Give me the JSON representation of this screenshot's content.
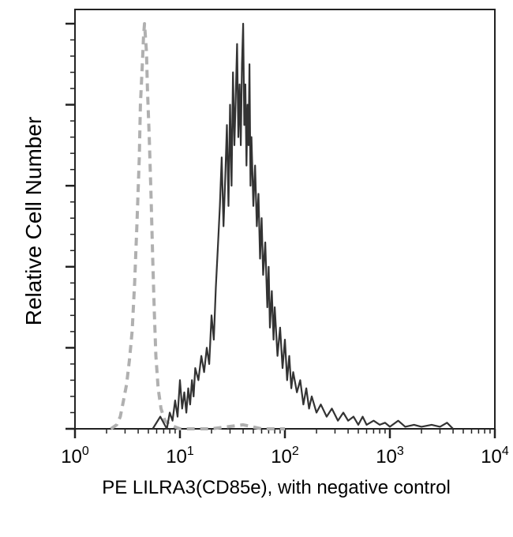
{
  "chart_data": {
    "type": "line",
    "title": "",
    "xlabel": "PE LILRA3(CD85e), with negative control",
    "ylabel": "Relative Cell Number",
    "x_scale": "log",
    "xlim": [
      1,
      10000
    ],
    "ylim": [
      0,
      1.0
    ],
    "x_ticks": [
      {
        "base": "10",
        "exp": "0"
      },
      {
        "base": "10",
        "exp": "1"
      },
      {
        "base": "10",
        "exp": "2"
      },
      {
        "base": "10",
        "exp": "3"
      },
      {
        "base": "10",
        "exp": "4"
      }
    ],
    "grid": false,
    "legend": "none",
    "series": [
      {
        "style": "dashed",
        "color": "#b0b0b0",
        "x": [
          2.2,
          2.5,
          2.7,
          2.9,
          3.1,
          3.3,
          3.5,
          3.7,
          3.9,
          4.1,
          4.2,
          4.4,
          4.5,
          4.6,
          4.8,
          4.9,
          5.1,
          5.3,
          5.5,
          5.7,
          5.9,
          6.2,
          6.6,
          7.2,
          8,
          10,
          20,
          40,
          60,
          100
        ],
        "y": [
          0.0,
          0.01,
          0.03,
          0.07,
          0.11,
          0.17,
          0.24,
          0.36,
          0.51,
          0.67,
          0.8,
          0.91,
          0.97,
          1.0,
          0.93,
          0.84,
          0.72,
          0.58,
          0.42,
          0.29,
          0.18,
          0.1,
          0.05,
          0.02,
          0.01,
          0.0,
          0.0,
          0.01,
          0.0,
          0.0
        ]
      },
      {
        "style": "solid",
        "color": "#333333",
        "x": [
          5.5,
          6.5,
          7.5,
          8,
          8.5,
          9,
          9.5,
          10,
          10.5,
          11,
          11.5,
          12,
          12.5,
          13,
          13.5,
          14,
          15,
          16,
          17,
          18,
          19,
          20,
          21,
          22,
          23,
          24,
          25,
          26,
          27,
          28,
          29,
          30,
          31,
          32,
          33,
          34,
          35,
          36,
          37,
          38,
          39,
          40,
          41,
          42,
          43,
          44,
          45,
          46,
          47,
          48,
          50,
          52,
          54,
          56,
          58,
          60,
          62,
          65,
          68,
          70,
          72,
          75,
          78,
          80,
          85,
          90,
          95,
          100,
          105,
          110,
          115,
          120,
          130,
          140,
          150,
          160,
          170,
          180,
          200,
          220,
          250,
          280,
          320,
          360,
          400,
          450,
          500,
          550,
          600,
          700,
          800,
          900,
          1000,
          1200,
          1400,
          1700,
          2000,
          2500,
          3000,
          3500,
          4000
        ],
        "y": [
          0.0,
          0.03,
          0.0,
          0.04,
          0.02,
          0.07,
          0.03,
          0.12,
          0.05,
          0.09,
          0.04,
          0.1,
          0.06,
          0.12,
          0.08,
          0.15,
          0.12,
          0.18,
          0.14,
          0.2,
          0.16,
          0.28,
          0.22,
          0.35,
          0.45,
          0.55,
          0.67,
          0.5,
          0.62,
          0.75,
          0.55,
          0.8,
          0.6,
          0.88,
          0.7,
          0.82,
          0.95,
          0.72,
          0.85,
          0.7,
          0.9,
          1.0,
          0.75,
          0.85,
          0.65,
          0.8,
          0.7,
          0.9,
          0.6,
          0.72,
          0.55,
          0.65,
          0.5,
          0.58,
          0.42,
          0.52,
          0.38,
          0.46,
          0.3,
          0.4,
          0.25,
          0.34,
          0.22,
          0.3,
          0.18,
          0.25,
          0.15,
          0.22,
          0.12,
          0.18,
          0.1,
          0.14,
          0.09,
          0.12,
          0.06,
          0.1,
          0.05,
          0.08,
          0.04,
          0.06,
          0.03,
          0.05,
          0.02,
          0.04,
          0.02,
          0.03,
          0.01,
          0.03,
          0.01,
          0.02,
          0.01,
          0.015,
          0.005,
          0.02,
          0.005,
          0.01,
          0.005,
          0.01,
          0.005,
          0.015,
          0.0
        ]
      }
    ]
  }
}
